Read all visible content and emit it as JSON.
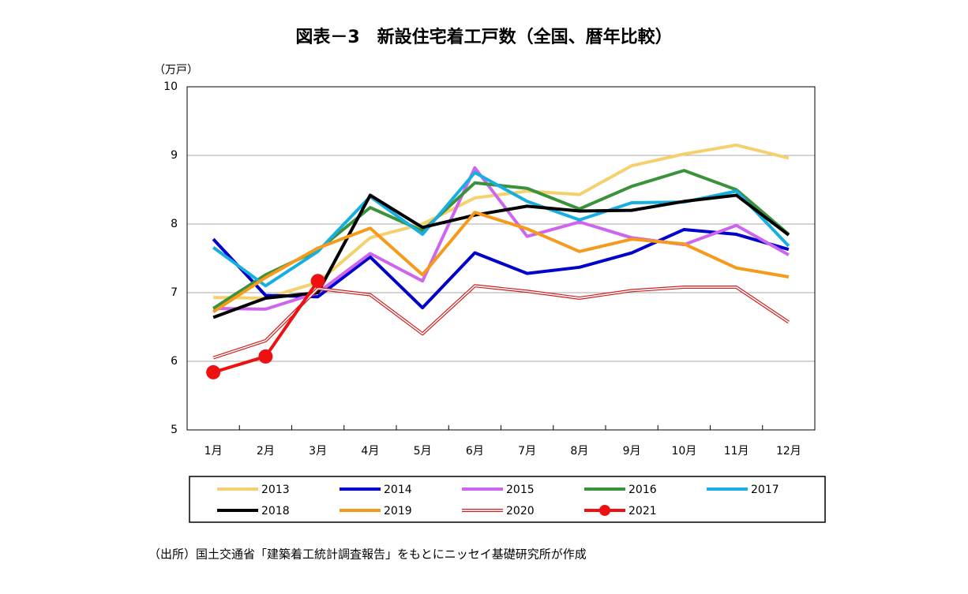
{
  "chart_data": {
    "type": "line",
    "title": "図表－3　新設住宅着工戸数（全国、暦年比較）",
    "y_label": "（万戸）",
    "source": "（出所）国土交通省「建築着工統計調査報告」をもとにニッセイ基礎研究所が作成",
    "categories": [
      "1月",
      "2月",
      "3月",
      "4月",
      "5月",
      "6月",
      "7月",
      "8月",
      "9月",
      "10月",
      "11月",
      "12月"
    ],
    "ylim": [
      5,
      10
    ],
    "yticks": [
      5,
      6,
      7,
      8,
      9,
      10
    ],
    "grid": true,
    "series": [
      {
        "name": "2013",
        "color": "#f5d06e",
        "values": [
          6.93,
          6.92,
          7.15,
          7.8,
          8.0,
          8.38,
          8.48,
          8.43,
          8.85,
          9.02,
          9.15,
          8.96
        ]
      },
      {
        "name": "2014",
        "color": "#0000cc",
        "values": [
          7.78,
          6.96,
          6.94,
          7.52,
          6.78,
          7.58,
          7.28,
          7.37,
          7.58,
          7.92,
          7.85,
          7.63
        ]
      },
      {
        "name": "2015",
        "color": "#cc66ee",
        "values": [
          6.77,
          6.76,
          7.0,
          7.57,
          7.17,
          8.82,
          7.82,
          8.03,
          7.8,
          7.7,
          7.98,
          7.55
        ]
      },
      {
        "name": "2016",
        "color": "#3a923a",
        "values": [
          6.77,
          7.26,
          7.62,
          8.24,
          7.9,
          8.6,
          8.52,
          8.22,
          8.55,
          8.78,
          8.5,
          7.85
        ]
      },
      {
        "name": "2017",
        "color": "#19aee0",
        "values": [
          7.66,
          7.1,
          7.6,
          8.4,
          7.85,
          8.75,
          8.33,
          8.06,
          8.31,
          8.32,
          8.48,
          7.68
        ]
      },
      {
        "name": "2018",
        "color": "#000000",
        "values": [
          6.64,
          6.92,
          7.0,
          8.42,
          7.95,
          8.13,
          8.26,
          8.19,
          8.2,
          8.33,
          8.42,
          7.84
        ]
      },
      {
        "name": "2019",
        "color": "#f59a1b",
        "values": [
          6.72,
          7.22,
          7.65,
          7.94,
          7.26,
          8.17,
          7.93,
          7.6,
          7.78,
          7.71,
          7.36,
          7.23
        ]
      },
      {
        "name": "2020",
        "color": "#d02020",
        "style": "double",
        "values": [
          6.05,
          6.3,
          7.06,
          6.97,
          6.4,
          7.1,
          7.02,
          6.92,
          7.03,
          7.08,
          7.08,
          6.57
        ]
      },
      {
        "name": "2021",
        "color": "#ee1111",
        "marker": "circle",
        "values": [
          5.84,
          6.07,
          7.17,
          null,
          null,
          null,
          null,
          null,
          null,
          null,
          null,
          null
        ]
      }
    ]
  }
}
